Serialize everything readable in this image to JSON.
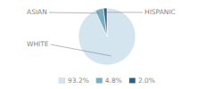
{
  "chart_data": {
    "type": "pie",
    "categories": [
      "WHITE",
      "ASIAN",
      "HISPANIC"
    ],
    "values": [
      93.2,
      4.8,
      2.0
    ],
    "value_labels": [
      "93.2%",
      "4.8%",
      "2.0%"
    ],
    "colors": [
      "#d4e5f0",
      "#7aafc3",
      "#2e5f7c"
    ],
    "legend": "bottom"
  }
}
